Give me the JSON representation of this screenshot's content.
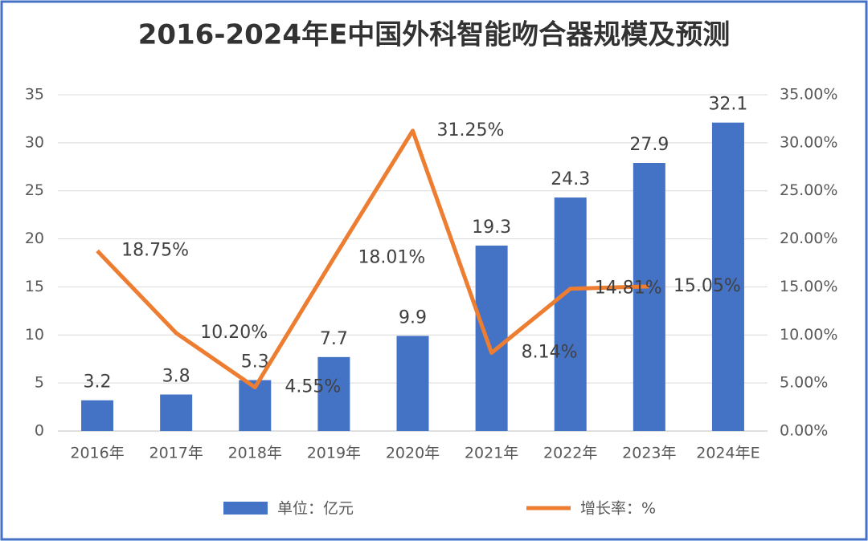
{
  "chart_data": {
    "type": "bar_line",
    "title": "2016-2024年E中国外科智能吻合器规模及预测",
    "categories": [
      "2016年",
      "2017年",
      "2018年",
      "2019年",
      "2020年",
      "2021年",
      "2022年",
      "2023年",
      "2024年E"
    ],
    "series": [
      {
        "name": "单位：亿元",
        "type": "bar",
        "color": "#4472c4",
        "values": [
          3.2,
          3.8,
          5.3,
          7.7,
          9.9,
          19.3,
          24.3,
          27.9,
          32.1
        ]
      },
      {
        "name": "增长率：%",
        "type": "line",
        "axis": "y2",
        "color": "#ed7d31",
        "values": [
          18.75,
          10.2,
          4.55,
          18.01,
          31.25,
          8.14,
          14.81,
          15.05,
          null
        ],
        "value_labels": [
          "18.75%",
          "10.20%",
          "4.55%",
          "18.01%",
          "31.25%",
          "8.14%",
          "14.81%",
          "15.05%",
          null
        ]
      }
    ],
    "ylim": [
      0,
      35
    ],
    "yticks": [
      0,
      5,
      10,
      15,
      20,
      25,
      30,
      35
    ],
    "y2lim": [
      0,
      35
    ],
    "y2ticks": [
      {
        "value": 0,
        "label": "0.00%"
      },
      {
        "value": 5,
        "label": "5.00%"
      },
      {
        "value": 10,
        "label": "10.00%"
      },
      {
        "value": 15,
        "label": "15.00%"
      },
      {
        "value": 20,
        "label": "20.00%"
      },
      {
        "value": 25,
        "label": "25.00%"
      },
      {
        "value": 30,
        "label": "30.00%"
      },
      {
        "value": 35,
        "label": "35.00%"
      }
    ],
    "grid": true,
    "legend": "bottom"
  }
}
